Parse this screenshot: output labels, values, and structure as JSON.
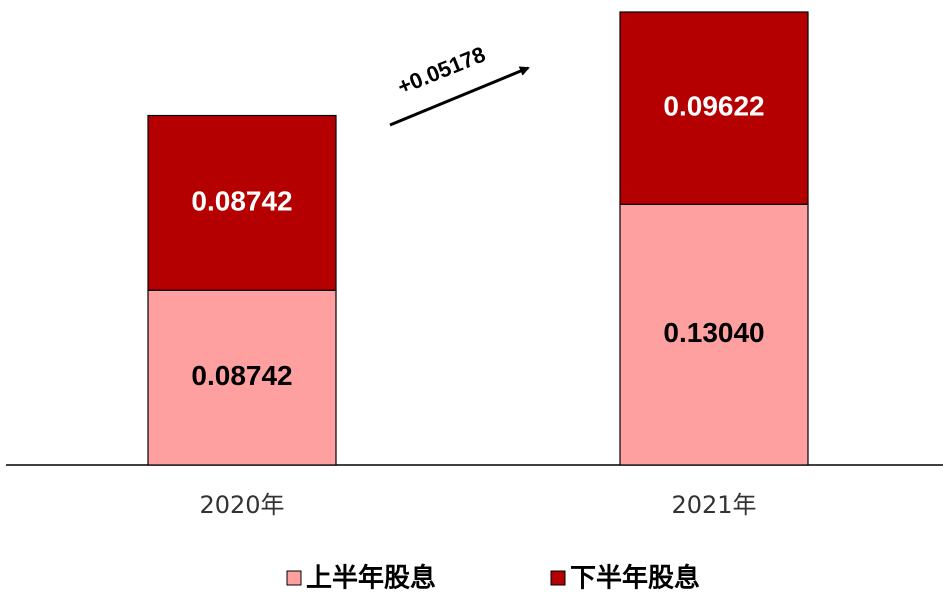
{
  "chart_data": {
    "type": "stacked_bar",
    "categories": [
      "2020年",
      "2021年"
    ],
    "series": [
      {
        "name": "上半年股息",
        "color": "#ffa0a0",
        "values": [
          0.08742,
          0.1304
        ],
        "value_labels": [
          "0.08742",
          "0.13040"
        ]
      },
      {
        "name": "下半年股息",
        "color": "#b40000",
        "values": [
          0.08742,
          0.09622
        ],
        "value_labels": [
          "0.08742",
          "0.09622"
        ]
      }
    ],
    "annotation": "+0.05178"
  }
}
